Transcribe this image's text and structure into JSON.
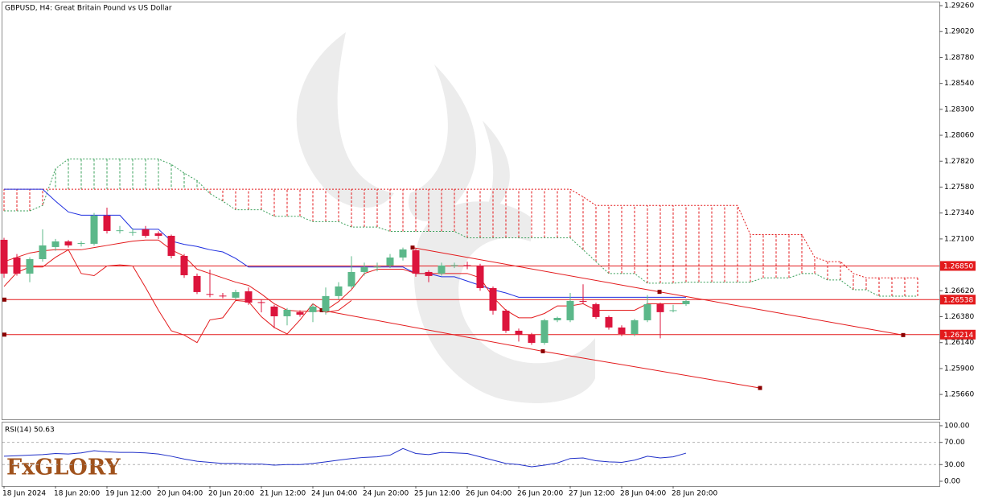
{
  "chart_data": [
    {
      "type": "candlestick",
      "title": "GBPUSD, H4:  Great Britain Pound vs US Dollar",
      "categories": [
        "18 Jun 2024",
        null,
        null,
        null,
        "18 Jun 20:00",
        null,
        null,
        null,
        "19 Jun 12:00",
        null,
        null,
        null,
        "20 Jun 04:00",
        null,
        null,
        null,
        "20 Jun 20:00",
        null,
        null,
        null,
        "21 Jun 12:00",
        null,
        null,
        null,
        "24 Jun 04:00",
        null,
        null,
        null,
        "24 Jun 20:00",
        null,
        null,
        null,
        "25 Jun 12:00",
        null,
        null,
        null,
        "26 Jun 04:00",
        null,
        null,
        null,
        "26 Jun 20:00",
        null,
        null,
        null,
        "27 Jun 12:00",
        null,
        null,
        null,
        "28 Jun 04:00",
        null,
        null,
        null,
        "28 Jun 20:00",
        null,
        null,
        null,
        null,
        null,
        null,
        null,
        null,
        null,
        null,
        null,
        null,
        null,
        null,
        null,
        null,
        null,
        null,
        null
      ],
      "open": [
        1.27092,
        1.26928,
        1.26779,
        1.26913,
        1.27025,
        1.27077,
        1.27055,
        1.27055,
        1.27316,
        1.27174,
        1.2716,
        1.27189,
        1.27152,
        1.27129,
        1.26943,
        1.26757,
        1.2659,
        1.26575,
        1.26556,
        1.26615,
        1.26515,
        1.26474,
        1.26384,
        1.26422,
        1.26422,
        1.26429,
        1.26571,
        1.2666,
        1.26794,
        1.26839,
        1.26854,
        1.26928,
        1.26995,
        1.26794,
        1.26779,
        1.26854,
        1.26857,
        1.26854,
        1.26645,
        1.26436,
        1.2625,
        1.26213,
        1.26138,
        1.26347,
        1.26347,
        1.26526,
        1.26496,
        1.26377,
        1.2628,
        1.2622,
        1.26347,
        1.26496,
        1.26436,
        1.26496,
        null,
        null,
        null,
        null,
        null,
        null,
        null,
        null,
        null,
        null,
        null,
        null,
        null,
        null,
        null,
        null,
        null,
        null
      ],
      "high": [
        1.2711,
        1.2696,
        1.2693,
        1.27189,
        1.271,
        1.2709,
        1.2708,
        1.2734,
        1.2739,
        1.2722,
        1.272,
        1.2722,
        1.2717,
        1.2714,
        1.2696,
        1.2678,
        1.26816,
        1.266,
        1.2663,
        1.2665,
        1.2654,
        1.2649,
        1.2646,
        1.2644,
        1.265,
        1.2665,
        1.267,
        1.2694,
        1.2688,
        1.2688,
        1.2696,
        1.2702,
        1.2701,
        1.2681,
        1.2688,
        1.2688,
        1.2689,
        1.2687,
        1.2666,
        1.2645,
        1.2627,
        1.2623,
        1.2636,
        1.2638,
        1.266,
        1.2668,
        1.2651,
        1.2639,
        1.263,
        1.2636,
        1.2658,
        1.2651,
        1.2649,
        1.2654,
        null,
        null,
        null,
        null,
        null,
        null,
        null,
        null,
        null,
        null,
        null,
        null,
        null,
        null,
        null,
        null,
        null,
        null
      ],
      "low": [
        1.2674,
        1.2676,
        1.267,
        1.2689,
        1.2699,
        1.2702,
        1.2703,
        1.2704,
        1.2715,
        1.2715,
        1.2713,
        1.2711,
        1.271,
        1.2692,
        1.2674,
        1.2659,
        1.2656,
        1.2655,
        1.2654,
        1.2649,
        1.2642,
        1.26273,
        1.263,
        1.2638,
        1.2633,
        1.264,
        1.2654,
        1.2664,
        1.2676,
        1.268,
        1.2683,
        1.269,
        1.2675,
        1.267,
        1.2676,
        1.2683,
        1.2682,
        1.2662,
        1.264,
        1.2623,
        1.2615,
        1.2612,
        1.2612,
        1.2633,
        1.2633,
        1.265,
        1.2636,
        1.2626,
        1.262,
        1.262,
        1.2633,
        1.2618,
        1.2642,
        1.2648,
        null,
        null,
        null,
        null,
        null,
        null,
        null,
        null,
        null,
        null,
        null,
        null,
        null,
        null,
        null,
        null,
        null,
        null
      ],
      "close": [
        1.26779,
        1.26779,
        1.26913,
        1.2704,
        1.27077,
        1.2704,
        1.27062,
        1.27316,
        1.27174,
        1.2718,
        1.27165,
        1.27129,
        1.27129,
        1.26943,
        1.26764,
        1.26608,
        1.26585,
        1.26571,
        1.26608,
        1.26511,
        1.26511,
        1.26384,
        1.26444,
        1.26399,
        1.26474,
        1.26571,
        1.2666,
        1.26794,
        1.26839,
        1.26842,
        1.26928,
        1.27003,
        1.26779,
        1.26757,
        1.26854,
        1.26857,
        1.26854,
        1.26645,
        1.26436,
        1.2625,
        1.26213,
        1.26138,
        1.26347,
        1.26369,
        1.26526,
        1.26522,
        1.26377,
        1.2628,
        1.2622,
        1.26347,
        1.26496,
        1.26422,
        1.2644,
        1.26526,
        null,
        null,
        null,
        null,
        null,
        null,
        null,
        null,
        null,
        null,
        null,
        null,
        null,
        null,
        null,
        null,
        null,
        null
      ],
      "bull_color": "#5cb88a",
      "bear_color": "#dc143c",
      "lines": [
        {
          "color": "#1f2fe0",
          "values": [
            1.2756,
            1.2756,
            1.2756,
            1.2756,
            1.2745,
            1.2735,
            1.2732,
            1.2732,
            1.2732,
            1.2732,
            1.2719,
            1.2719,
            1.2719,
            1.2708,
            1.2705,
            1.2703,
            1.27,
            1.2698,
            1.2692,
            1.2684,
            1.2684,
            1.2684,
            1.2684,
            1.2684,
            1.2684,
            1.2684,
            1.2684,
            1.2684,
            1.2684,
            1.2684,
            1.2684,
            1.2684,
            1.2678,
            1.2678,
            1.2675,
            1.2675,
            1.2671,
            1.2667,
            1.2663,
            1.266,
            1.2656,
            1.2656,
            1.2656,
            1.2656,
            1.2656,
            1.2656,
            1.2656,
            1.2656,
            1.2656,
            1.2656,
            1.2656,
            1.2656,
            1.2656,
            1.2656,
            null,
            null,
            null,
            null,
            null,
            null,
            null,
            null,
            null,
            null,
            null,
            null,
            null,
            null,
            null,
            null,
            null,
            null
          ]
        },
        {
          "color": "#e31a1c",
          "values": [
            1.2689,
            1.2693,
            1.2697,
            1.2699,
            1.27,
            1.27,
            1.27,
            1.2702,
            1.2704,
            1.2706,
            1.2708,
            1.2709,
            1.2709,
            1.27,
            1.2694,
            1.2682,
            1.2678,
            1.2674,
            1.267,
            1.2667,
            1.2659,
            1.265,
            1.2644,
            1.2643,
            1.2643,
            1.2644,
            1.2652,
            1.2663,
            1.2678,
            1.2682,
            1.2682,
            1.2682,
            1.2678,
            1.2678,
            1.2678,
            1.2678,
            1.2678,
            1.2674,
            1.2656,
            1.2644,
            1.2637,
            1.2637,
            1.2641,
            1.2648,
            1.2648,
            1.265,
            1.2644,
            1.2644,
            1.2644,
            1.2644,
            1.265,
            1.265,
            1.265,
            1.265,
            null,
            null,
            null,
            null,
            null,
            null,
            null,
            null,
            null,
            null,
            null,
            null,
            null,
            null,
            null,
            null,
            null,
            null
          ]
        },
        {
          "color": "#e31a1c",
          "values": [
            1.2666,
            1.2679,
            1.2684,
            1.2684,
            1.2693,
            1.27,
            1.2678,
            1.2676,
            1.2685,
            1.2686,
            1.2685,
            1.2665,
            1.2644,
            1.2625,
            1.2621,
            1.2614,
            1.2635,
            1.2637,
            1.2653,
            1.2652,
            1.2638,
            1.2628,
            1.2622,
            1.2635,
            1.265,
            1.2642,
            1.2644,
            1.2653,
            null,
            null,
            null,
            null,
            null,
            null,
            null,
            null,
            null,
            null,
            null,
            null,
            null,
            null,
            null,
            null,
            null,
            null,
            null,
            null,
            null,
            null,
            null,
            null,
            null,
            null,
            null,
            null,
            null,
            null,
            null,
            null,
            null,
            null,
            null,
            null,
            null,
            null,
            null,
            null,
            null,
            null,
            null,
            null
          ]
        }
      ],
      "cloud": {
        "span_a": {
          "color": "#3aa05a",
          "values": [
            1.2736,
            1.2736,
            1.2736,
            1.2741,
            1.2775,
            1.2784,
            1.2784,
            1.2784,
            1.2784,
            1.2784,
            1.2784,
            1.2784,
            1.2784,
            1.2779,
            1.2771,
            1.2764,
            1.2752,
            1.2745,
            1.2737,
            1.2737,
            1.2737,
            1.2731,
            1.2731,
            1.2731,
            1.2726,
            1.2726,
            1.2726,
            1.2721,
            1.2721,
            1.2721,
            1.2717,
            1.2717,
            1.2717,
            1.2717,
            1.2717,
            1.2717,
            1.2711,
            1.2711,
            1.2711,
            1.2711,
            1.2711,
            1.2711,
            1.2711,
            1.2711,
            1.2711,
            1.27,
            1.2689,
            1.2678,
            1.2678,
            1.2678,
            1.2669,
            1.2669,
            1.2669,
            1.267,
            1.267,
            1.267,
            1.267,
            1.267,
            1.267,
            1.2674,
            1.2674,
            1.2674,
            1.2678,
            1.2678,
            1.2672,
            1.2672,
            1.2663,
            1.2663,
            1.2657,
            1.2657,
            1.2657,
            1.2657
          ]
        },
        "span_b": {
          "color": "#e31a1c",
          "values": [
            1.2756,
            1.2756,
            1.2756,
            1.2756,
            1.2756,
            1.2756,
            1.2756,
            1.2756,
            1.2756,
            1.2756,
            1.2756,
            1.2756,
            1.2756,
            1.2756,
            1.2756,
            1.2756,
            1.2756,
            1.2756,
            1.2756,
            1.2756,
            1.2756,
            1.2756,
            1.2756,
            1.2756,
            1.2756,
            1.2756,
            1.2756,
            1.2756,
            1.2756,
            1.2756,
            1.2756,
            1.2756,
            1.2756,
            1.2756,
            1.2756,
            1.2756,
            1.2756,
            1.2756,
            1.2756,
            1.2756,
            1.2756,
            1.2756,
            1.2756,
            1.2756,
            1.2756,
            1.2749,
            1.2741,
            1.2741,
            1.2741,
            1.2741,
            1.2741,
            1.2741,
            1.2741,
            1.2741,
            1.2741,
            1.2741,
            1.2741,
            1.2741,
            1.2714,
            1.2714,
            1.2714,
            1.2714,
            1.2714,
            1.2693,
            1.2689,
            1.2689,
            1.2678,
            1.2674,
            1.2674,
            1.2674,
            1.2674,
            1.2674
          ]
        }
      },
      "trendlines": [
        {
          "color": "#e31a1c",
          "marker_color": "#8b0000",
          "x": [
            31.75,
            50.94,
            69.875
          ],
          "y": [
            1.2702,
            1.2661,
            1.2621
          ]
        },
        {
          "color": "#e31a1c",
          "marker_color": "#8b0000",
          "x": [
            24.69,
            41.875,
            58.75
          ],
          "y": [
            1.2644,
            1.2606,
            1.2572
          ]
        }
      ],
      "levels": [
        {
          "value": 1.2685,
          "label": "1.26850"
        },
        {
          "value": 1.26538,
          "label": "1.26538"
        },
        {
          "value": 1.26214,
          "label": "1.26214"
        }
      ],
      "level_color": "#e31a1c",
      "ylim": [
        1.2543,
        1.2929
      ],
      "yticks": [
        {
          "value": 1.2926,
          "label": "1.29260"
        },
        {
          "value": 1.2902,
          "label": "1.29020"
        },
        {
          "value": 1.2878,
          "label": "1.28780"
        },
        {
          "value": 1.2854,
          "label": "1.28540"
        },
        {
          "value": 1.283,
          "label": "1.28300"
        },
        {
          "value": 1.2806,
          "label": "1.28060"
        },
        {
          "value": 1.2782,
          "label": "1.27820"
        },
        {
          "value": 1.2758,
          "label": "1.27580"
        },
        {
          "value": 1.2734,
          "label": "1.27340"
        },
        {
          "value": 1.271,
          "label": "1.27100"
        },
        {
          "value": 1.2662,
          "label": "1.26620"
        },
        {
          "value": 1.2638,
          "label": "1.26380"
        },
        {
          "value": 1.2614,
          "label": "1.26140"
        },
        {
          "value": 1.259,
          "label": "1.25900"
        },
        {
          "value": 1.2566,
          "label": "1.25660"
        }
      ]
    },
    {
      "type": "line",
      "label": "RSI(14) 50.63",
      "color": "#1f2fc8",
      "values": [
        45,
        46,
        47,
        48,
        50,
        49,
        51,
        55,
        53,
        52,
        52,
        51,
        49,
        45,
        40,
        36,
        34,
        32,
        32,
        31,
        31,
        29,
        30,
        30,
        32,
        35,
        38,
        41,
        43,
        44,
        47,
        59,
        50,
        48,
        52,
        51,
        50,
        44,
        38,
        32,
        30,
        26,
        29,
        33,
        41,
        42,
        37,
        35,
        34,
        38,
        45,
        42,
        44,
        50.63
      ],
      "ylim": [
        -8.7,
        107.2
      ],
      "yticks": [
        {
          "value": 100,
          "label": "100.00"
        },
        {
          "value": 70,
          "label": "70.00"
        },
        {
          "value": 30,
          "label": "30.00"
        },
        {
          "value": 0,
          "label": "0.00"
        }
      ],
      "levels": [
        70,
        30
      ]
    }
  ],
  "logo": "FxGLORY"
}
